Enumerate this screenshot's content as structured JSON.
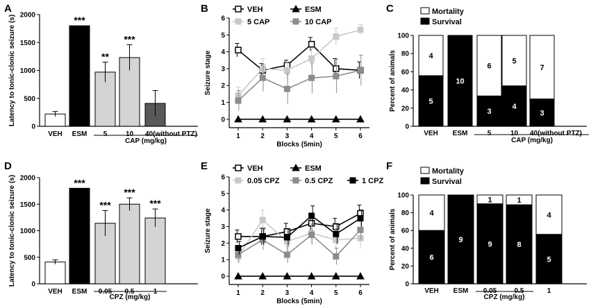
{
  "figure": {
    "panels": [
      "A",
      "B",
      "C",
      "D",
      "E",
      "F"
    ]
  },
  "chart_data": [
    {
      "panel": "A",
      "type": "bar",
      "ylabel": "Latency to tonic-clonic seizure (s)",
      "ylim": [
        0,
        2000
      ],
      "yticks": [
        0,
        500,
        1000,
        1500,
        2000
      ],
      "categories": [
        "VEH",
        "ESM",
        "5",
        "10",
        "40(without PTZ)"
      ],
      "values": [
        220,
        1800,
        970,
        1230,
        410
      ],
      "errors": [
        45,
        0,
        180,
        230,
        230
      ],
      "colors": [
        "#ffffff",
        "#000000",
        "#d4d4d4",
        "#d4d4d4",
        "#595959"
      ],
      "significance": [
        "",
        "***",
        "**",
        "***",
        ""
      ],
      "group": {
        "label": "CAP (mg/kg)",
        "from": 2,
        "to": 4
      }
    },
    {
      "panel": "B",
      "type": "line",
      "ylabel": "Seizure stage",
      "xlabel": "Blocks (5min)",
      "ylim": [
        -0.5,
        6
      ],
      "yticks": [
        0,
        1,
        2,
        3,
        4,
        5,
        6
      ],
      "x": [
        1,
        2,
        3,
        4,
        5,
        6
      ],
      "series": [
        {
          "name": "VEH",
          "marker": "open-square",
          "color": "#000000",
          "values": [
            4.1,
            2.9,
            3.2,
            4.45,
            3.0,
            2.9
          ],
          "errors": [
            0.4,
            0.4,
            0.3,
            0.4,
            0.6,
            0.5
          ]
        },
        {
          "name": "ESM",
          "marker": "triangle",
          "color": "#000000",
          "values": [
            0,
            0,
            0,
            0,
            0,
            0
          ],
          "errors": [
            0,
            0,
            0,
            0,
            0,
            0
          ]
        },
        {
          "name": "5 CAP",
          "marker": "square",
          "color": "#c8c8c8",
          "values": [
            1.4,
            3.0,
            2.9,
            3.6,
            4.9,
            5.3
          ],
          "errors": [
            0.5,
            0.6,
            0.5,
            0.6,
            0.5,
            0.3
          ]
        },
        {
          "name": "10 CAP",
          "marker": "square",
          "color": "#8c8c8c",
          "values": [
            1.1,
            2.45,
            1.8,
            2.45,
            2.55,
            2.9
          ],
          "errors": [
            0.6,
            0.8,
            0.9,
            0.9,
            1.0,
            0.9
          ]
        }
      ]
    },
    {
      "panel": "C",
      "type": "bar",
      "stacked": true,
      "ylabel": "Percent of animals",
      "ylim": [
        0,
        100
      ],
      "yticks": [
        0,
        20,
        40,
        60,
        80,
        100
      ],
      "legend": [
        "Mortality",
        "Survival"
      ],
      "categories": [
        "VEH",
        "ESM",
        "5",
        "10",
        "40(without PTZ)"
      ],
      "survival_pct": [
        55.6,
        100,
        33.3,
        44.4,
        30
      ],
      "survival_counts": [
        "5",
        "10",
        "3",
        "4",
        "3"
      ],
      "mortality_counts": [
        "4",
        "",
        "6",
        "5",
        "7"
      ],
      "group": {
        "label": "CAP (mg/kg)",
        "from": 2,
        "to": 4
      }
    },
    {
      "panel": "D",
      "type": "bar",
      "ylabel": "Latency to tonic-clonic seizure (s)",
      "ylim": [
        0,
        2000
      ],
      "yticks": [
        0,
        500,
        1000,
        1500,
        2000
      ],
      "categories": [
        "VEH",
        "ESM",
        "0.05",
        "0.5",
        "1"
      ],
      "values": [
        410,
        1800,
        1140,
        1500,
        1240
      ],
      "errors": [
        40,
        0,
        240,
        120,
        170
      ],
      "colors": [
        "#ffffff",
        "#000000",
        "#d4d4d4",
        "#d4d4d4",
        "#d4d4d4"
      ],
      "significance": [
        "",
        "***",
        "***",
        "***",
        "***"
      ],
      "group": {
        "label": "CPZ (mg/kg)",
        "from": 2,
        "to": 4
      }
    },
    {
      "panel": "E",
      "type": "line",
      "ylabel": "Seizure stage",
      "xlabel": "Blocks (5min)",
      "ylim": [
        -0.5,
        6
      ],
      "yticks": [
        0,
        1,
        2,
        3,
        4,
        5,
        6
      ],
      "x": [
        1,
        2,
        3,
        4,
        5,
        6
      ],
      "series": [
        {
          "name": "VEH",
          "marker": "open-square",
          "color": "#000000",
          "values": [
            2.4,
            2.4,
            2.7,
            3.2,
            3.0,
            3.8
          ],
          "errors": [
            0.4,
            0.5,
            0.5,
            0.5,
            0.5,
            0.5
          ]
        },
        {
          "name": "ESM",
          "marker": "triangle",
          "color": "#000000",
          "values": [
            0,
            0,
            0,
            0,
            0,
            0
          ],
          "errors": [
            0,
            0,
            0,
            0,
            0,
            0
          ]
        },
        {
          "name": "0.05 CPZ",
          "marker": "square",
          "color": "#c8c8c8",
          "values": [
            1.2,
            3.4,
            2.1,
            2.6,
            2.2,
            2.3
          ],
          "errors": [
            0.4,
            0.6,
            0.6,
            0.6,
            0.6,
            0.6
          ]
        },
        {
          "name": "0.5 CPZ",
          "marker": "square",
          "color": "#8c8c8c",
          "values": [
            1.3,
            2.2,
            1.3,
            2.5,
            1.2,
            2.8
          ],
          "errors": [
            0.5,
            0.6,
            0.5,
            0.6,
            0.5,
            0.6
          ]
        },
        {
          "name": "1 CPZ",
          "marker": "square",
          "color": "#000000",
          "values": [
            1.7,
            2.4,
            2.35,
            3.65,
            2.55,
            3.5
          ],
          "errors": [
            0.4,
            0.5,
            0.5,
            0.6,
            0.6,
            0.5
          ]
        }
      ]
    },
    {
      "panel": "F",
      "type": "bar",
      "stacked": true,
      "ylabel": "Percent of animals",
      "ylim": [
        0,
        100
      ],
      "yticks": [
        0,
        20,
        40,
        60,
        80,
        100
      ],
      "legend": [
        "Mortality",
        "Survival"
      ],
      "categories": [
        "VEH",
        "ESM",
        "0.05",
        "0.5",
        "1"
      ],
      "survival_pct": [
        60,
        100,
        90,
        88.9,
        55.6
      ],
      "survival_counts": [
        "6",
        "9",
        "9",
        "8",
        "5"
      ],
      "mortality_counts": [
        "4",
        "",
        "1",
        "1",
        "4"
      ],
      "group": {
        "label": "CPZ (mg/kg)",
        "from": 2,
        "to": 4
      }
    }
  ]
}
